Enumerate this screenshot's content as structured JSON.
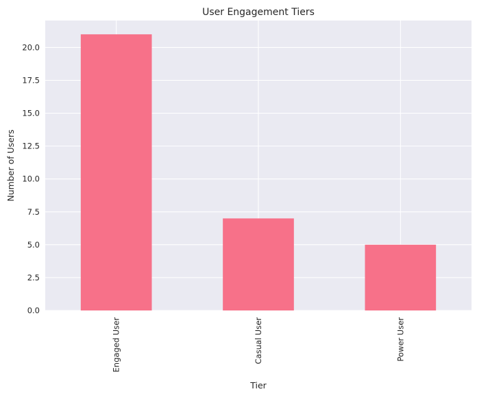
{
  "chart_data": {
    "type": "bar",
    "title": "User Engagement Tiers",
    "xlabel": "Tier",
    "ylabel": "Number of Users",
    "categories": [
      "Engaged User",
      "Casual User",
      "Power User"
    ],
    "values": [
      21,
      7,
      5
    ],
    "ylim": [
      0,
      22.05
    ],
    "yticks": [
      "0.0",
      "2.5",
      "5.0",
      "7.5",
      "10.0",
      "12.5",
      "15.0",
      "17.5",
      "20.0"
    ],
    "grid": true,
    "bar_color": "#f77189",
    "plot_background": "#eaeaf2",
    "grid_color": "#ffffff"
  }
}
